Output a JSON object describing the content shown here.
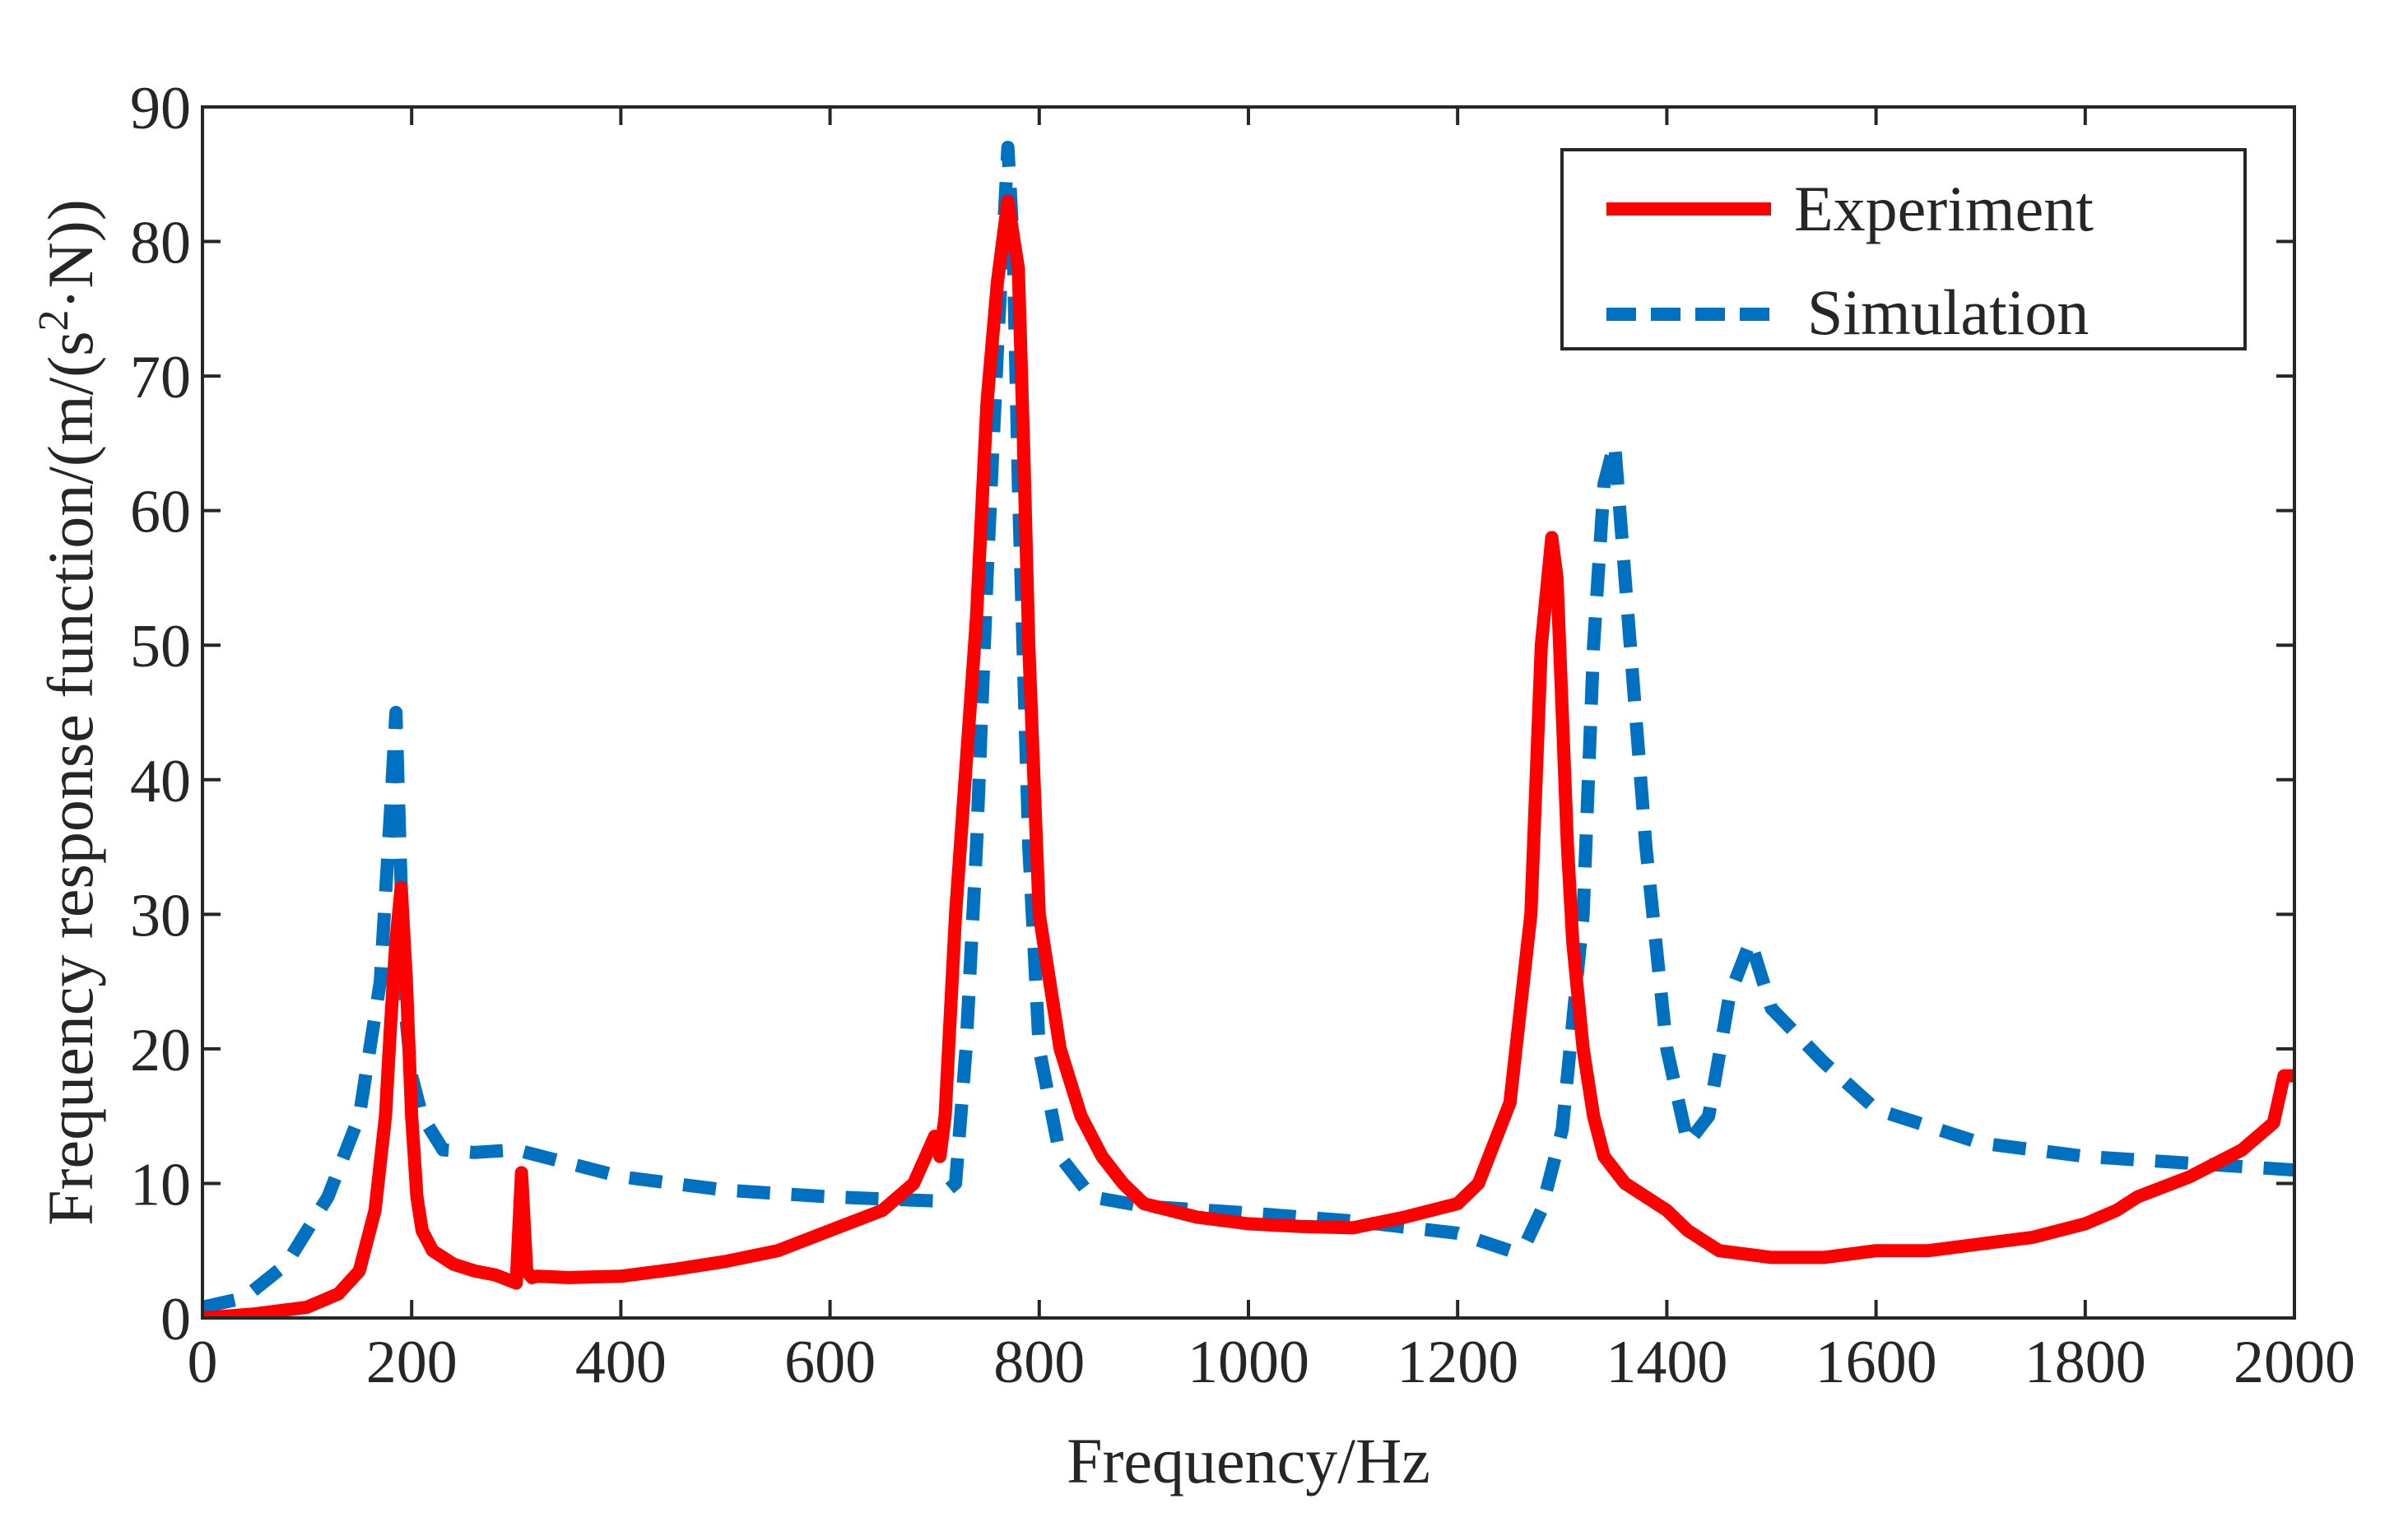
{
  "chart_data": {
    "type": "line",
    "xlabel": "Frequency/Hz",
    "ylabel_prefix": "Frequency response function/(m/(s",
    "ylabel_sup": "2",
    "ylabel_suffix": "·N))",
    "xlim": [
      0,
      2000
    ],
    "ylim": [
      0,
      90
    ],
    "xticks": [
      0,
      200,
      400,
      600,
      800,
      1000,
      1200,
      1400,
      1600,
      1800,
      2000
    ],
    "yticks": [
      0,
      10,
      20,
      30,
      40,
      50,
      60,
      70,
      80,
      90
    ],
    "xtick_labels": [
      "0",
      "200",
      "400",
      "600",
      "800",
      "1000",
      "1200",
      "1400",
      "1600",
      "1800",
      "2000"
    ],
    "ytick_labels": [
      "0",
      "10",
      "20",
      "30",
      "40",
      "50",
      "60",
      "70",
      "80",
      "90"
    ],
    "grid": false,
    "legend_position": "top-right",
    "series": [
      {
        "name": "Experiment",
        "color": "#ff0000",
        "style": "solid",
        "x": [
          0,
          50,
          100,
          130,
          150,
          165,
          175,
          180,
          185,
          190,
          195,
          200,
          205,
          210,
          220,
          240,
          260,
          280,
          300,
          305,
          310,
          315,
          320,
          350,
          400,
          450,
          500,
          550,
          600,
          650,
          680,
          700,
          705,
          710,
          720,
          740,
          750,
          760,
          770,
          780,
          785,
          790,
          795,
          800,
          810,
          820,
          840,
          860,
          880,
          900,
          950,
          1000,
          1050,
          1100,
          1150,
          1200,
          1220,
          1250,
          1270,
          1280,
          1290,
          1295,
          1300,
          1305,
          1310,
          1320,
          1330,
          1340,
          1360,
          1380,
          1400,
          1420,
          1450,
          1500,
          1550,
          1600,
          1650,
          1700,
          1750,
          1800,
          1830,
          1850,
          1900,
          1950,
          1980,
          1990,
          2000
        ],
        "y": [
          0,
          0.3,
          0.8,
          1.8,
          3.5,
          8,
          15,
          22,
          28,
          32,
          25,
          15,
          9,
          6.5,
          5,
          4,
          3.5,
          3.2,
          2.6,
          10.8,
          3.5,
          3,
          3.1,
          3,
          3.1,
          3.6,
          4.2,
          5,
          6.5,
          8,
          10,
          13.5,
          12,
          15,
          30,
          52,
          68,
          77,
          83,
          78,
          65,
          50,
          40,
          30,
          25,
          20,
          15,
          12,
          10,
          8.5,
          7.5,
          7,
          6.8,
          6.7,
          7.5,
          8.5,
          10,
          16,
          30,
          50,
          58,
          55,
          45,
          35,
          28,
          20,
          15,
          12,
          10,
          9,
          8,
          6.5,
          5,
          4.5,
          4.5,
          5,
          5,
          5.5,
          6,
          7,
          8,
          9,
          10.5,
          12.5,
          14.5,
          18,
          18
        ]
      },
      {
        "name": "Simulation",
        "color": "#0070c0",
        "style": "dashed",
        "x": [
          0,
          40,
          80,
          120,
          150,
          170,
          180,
          185,
          190,
          195,
          200,
          210,
          230,
          260,
          300,
          350,
          400,
          500,
          600,
          700,
          720,
          730,
          740,
          750,
          760,
          770,
          775,
          780,
          790,
          800,
          820,
          850,
          900,
          1000,
          1100,
          1200,
          1250,
          1265,
          1280,
          1300,
          1320,
          1330,
          1340,
          1350,
          1360,
          1380,
          1400,
          1420,
          1440,
          1460,
          1480,
          1500,
          1550,
          1600,
          1700,
          1800,
          1900,
          2000
        ],
        "y": [
          0.8,
          1.5,
          4,
          9,
          15,
          25,
          38,
          45,
          32,
          22,
          18,
          15,
          12.5,
          12.3,
          12.5,
          11.5,
          10.5,
          9.5,
          9,
          8.7,
          10,
          20,
          35,
          55,
          72,
          87,
          80,
          62,
          35,
          20,
          12,
          9,
          8.3,
          7.8,
          7.2,
          6.3,
          5,
          5.5,
          8,
          14,
          30,
          50,
          62,
          65,
          55,
          35,
          20,
          13,
          15,
          24,
          28,
          23,
          19,
          15.5,
          13,
          12,
          11.5,
          11
        ]
      }
    ]
  }
}
